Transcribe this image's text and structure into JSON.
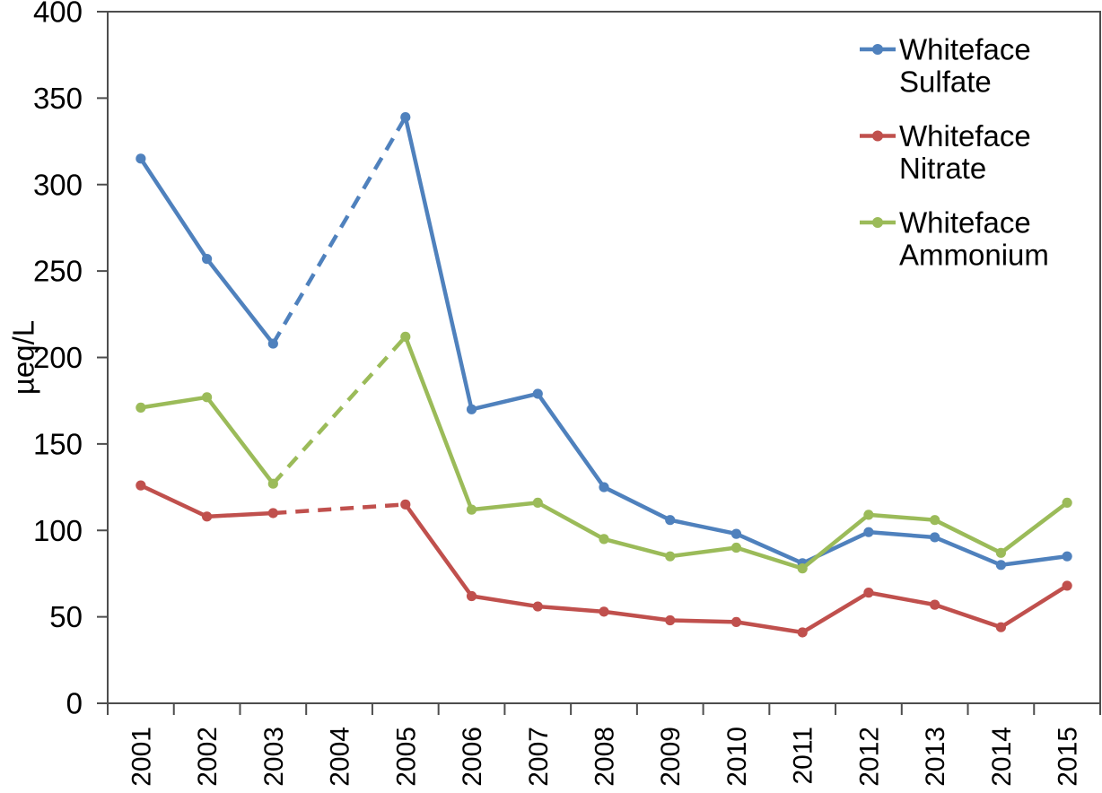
{
  "chart_data": {
    "type": "line",
    "title": "",
    "xlabel": "",
    "ylabel": "µeq/L",
    "ylim": [
      0,
      400
    ],
    "ytick_step": 50,
    "grid": false,
    "legend_position": "inside-top-right",
    "missing_gap_style": "dashed",
    "axis_color": "#4d4d4d",
    "categories": [
      "2001",
      "2002",
      "2003",
      "2004",
      "2005",
      "2006",
      "2007",
      "2008",
      "2009",
      "2010",
      "2011",
      "2012",
      "2013",
      "2014",
      "2015"
    ],
    "series": [
      {
        "name": "Whiteface Sulfate",
        "legend_lines": [
          "Whiteface",
          "Sulfate"
        ],
        "color": "#4F81BD",
        "values": [
          315,
          257,
          208,
          null,
          339,
          170,
          179,
          125,
          106,
          98,
          81,
          99,
          96,
          80,
          85
        ]
      },
      {
        "name": "Whiteface Nitrate",
        "legend_lines": [
          "Whiteface",
          "Nitrate"
        ],
        "color": "#C0504D",
        "values": [
          126,
          108,
          110,
          null,
          115,
          62,
          56,
          53,
          48,
          47,
          41,
          64,
          57,
          44,
          68
        ]
      },
      {
        "name": "Whiteface Ammonium",
        "legend_lines": [
          "Whiteface",
          "Ammonium"
        ],
        "color": "#9BBB59",
        "values": [
          171,
          177,
          127,
          null,
          212,
          112,
          116,
          95,
          85,
          90,
          78,
          109,
          106,
          87,
          116
        ]
      }
    ]
  }
}
